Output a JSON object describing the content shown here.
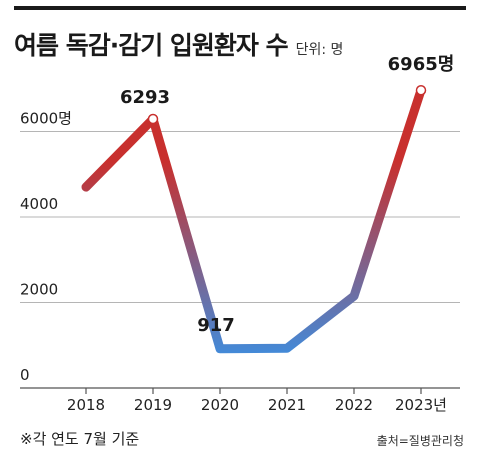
{
  "header": {
    "title": "여름 독감·감기 입원환자 수",
    "unit": "단위: 명"
  },
  "footer": {
    "note": "※각  연도 7월 기준",
    "source": "출처=질병관리청"
  },
  "colors": {
    "high": "#c8302e",
    "low": "#3d8ee0",
    "grid": "#b5b5b5"
  },
  "chart_data": {
    "type": "line",
    "x": [
      "2018",
      "2019",
      "2020",
      "2021",
      "2022",
      "2023년"
    ],
    "values": [
      4700,
      6293,
      917,
      930,
      2150,
      6965
    ],
    "value_labels": [
      "",
      "6293",
      "917",
      "",
      "",
      "6965명"
    ],
    "y_ticks": [
      0,
      2000,
      4000,
      6000
    ],
    "y_tick_labels": [
      "0",
      "2000",
      "4000",
      "6000명"
    ],
    "ylim": [
      0,
      7300
    ],
    "grid": true,
    "legend": "none"
  }
}
